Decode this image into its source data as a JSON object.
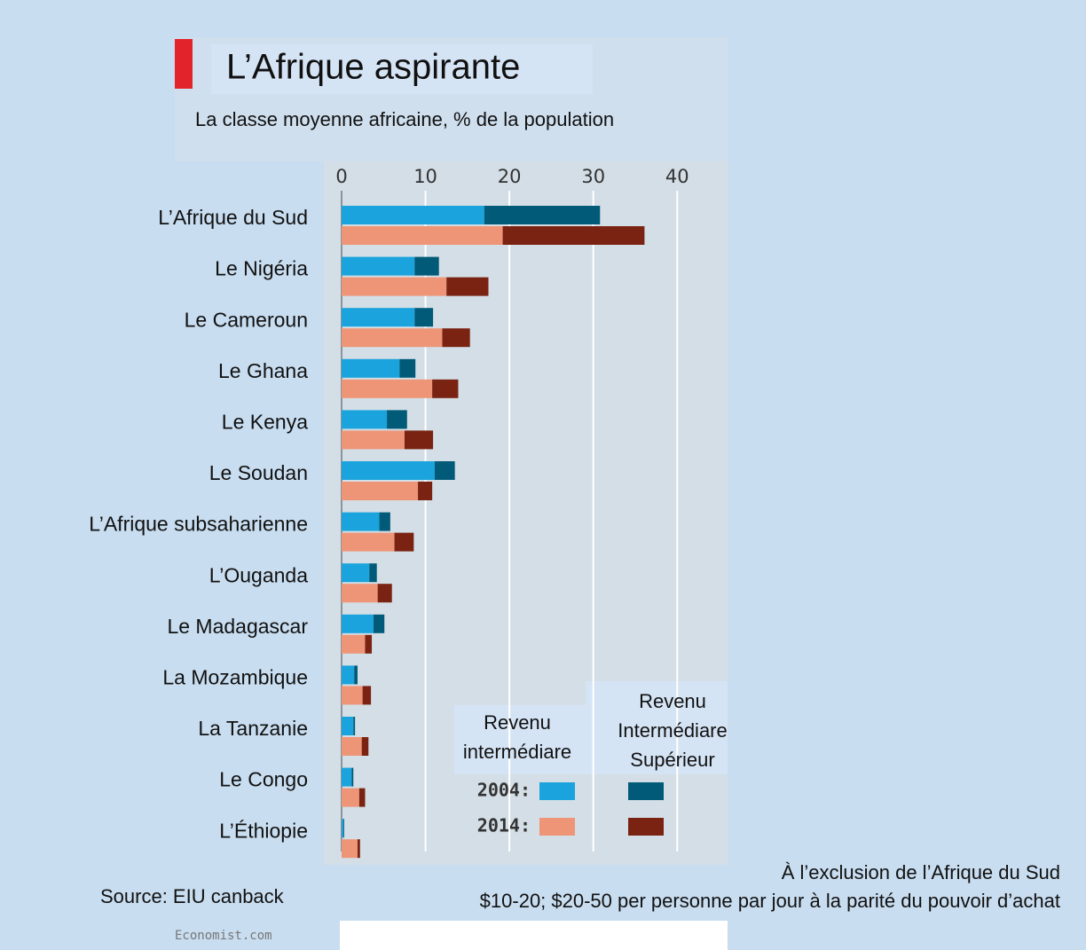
{
  "chart_data": {
    "type": "stacked-bar-horizontal",
    "title": "L’Afrique aspirante",
    "subtitle": "La classe moyenne africaine, % de la population",
    "categories": [
      "L’Afrique du Sud",
      "Le Nigéria",
      "Le Cameroun",
      "Le Ghana",
      "Le Kenya",
      "Le Soudan",
      "L’Afrique subsaharienne",
      "L’Ouganda",
      "Le Madagascar",
      "La Mozambique",
      "La Tanzanie",
      "Le Congo",
      "L’Éthiopie"
    ],
    "segment_names": [
      "Revenu intermédiare",
      "Revenu Intermédiare Supérieur"
    ],
    "series": [
      {
        "name": "2004:",
        "colors": [
          "#1aa3dc",
          "#005a78"
        ],
        "values": [
          [
            17.0,
            13.8
          ],
          [
            8.7,
            2.9
          ],
          [
            8.7,
            2.2
          ],
          [
            6.9,
            1.9
          ],
          [
            5.4,
            2.4
          ],
          [
            11.1,
            2.4
          ],
          [
            4.5,
            1.3
          ],
          [
            3.3,
            0.9
          ],
          [
            3.8,
            1.3
          ],
          [
            1.5,
            0.4
          ],
          [
            1.4,
            0.2
          ],
          [
            1.2,
            0.2
          ],
          [
            0.2,
            0.1
          ]
        ]
      },
      {
        "name": "2014:",
        "colors": [
          "#ee9577",
          "#7a2312"
        ],
        "values": [
          [
            19.2,
            16.9
          ],
          [
            12.5,
            5.0
          ],
          [
            12.0,
            3.3
          ],
          [
            10.8,
            3.1
          ],
          [
            7.5,
            3.4
          ],
          [
            9.1,
            1.7
          ],
          [
            6.3,
            2.3
          ],
          [
            4.3,
            1.7
          ],
          [
            2.8,
            0.8
          ],
          [
            2.5,
            1.0
          ],
          [
            2.4,
            0.8
          ],
          [
            2.1,
            0.7
          ],
          [
            1.9,
            0.3
          ]
        ]
      }
    ],
    "xlim": [
      0,
      46
    ],
    "xticks": [
      0,
      10,
      20,
      30,
      40
    ],
    "grid": true,
    "footnotes": [
      "À l’exclusion de l’Afrique du Sud",
      "$10-20; $20-50 per personne par jour à la parité du pouvoir d’achat"
    ],
    "source": "Source: EIU canback",
    "credit": "Economist.com"
  }
}
